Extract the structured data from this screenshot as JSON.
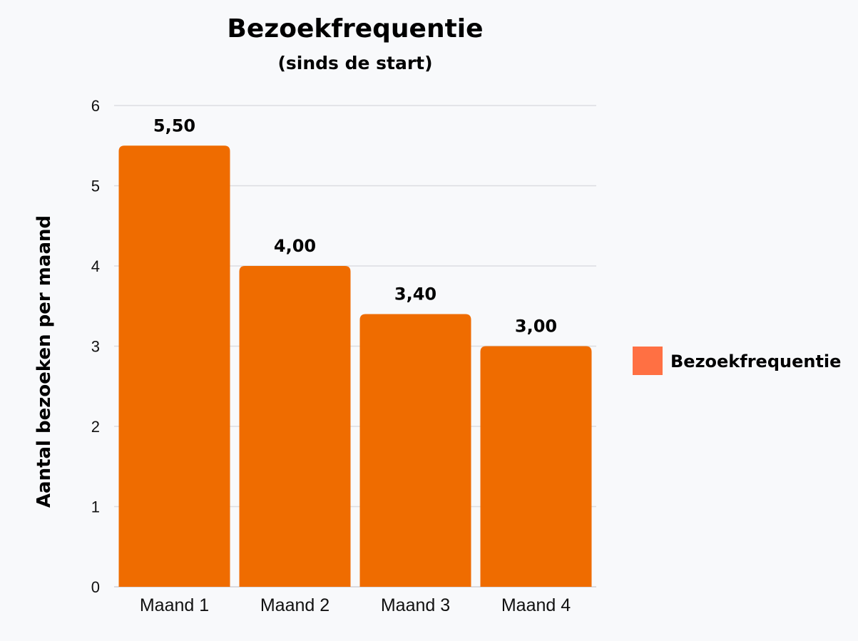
{
  "chart_data": {
    "type": "bar",
    "title": "Bezoekfrequentie",
    "subtitle": "(sinds de start)",
    "xlabel": "",
    "ylabel": "Aantal bezoeken per maand",
    "categories": [
      "Maand 1",
      "Maand 2",
      "Maand 3",
      "Maand 4"
    ],
    "series": [
      {
        "name": "Bezoekfrequentie",
        "values": [
          5.5,
          4.0,
          3.4,
          3.0
        ],
        "data_labels": [
          "5,50",
          "4,00",
          "3,40",
          "3,00"
        ],
        "color": "#ef6c00"
      }
    ],
    "ylim": [
      0,
      6
    ],
    "yticks": [
      "0",
      "1",
      "2",
      "3",
      "4",
      "5",
      "6"
    ],
    "grid": true,
    "legend": {
      "position": "right",
      "entries": [
        {
          "label": "Bezoekfrequentie",
          "color": "#ff7043"
        }
      ]
    }
  }
}
